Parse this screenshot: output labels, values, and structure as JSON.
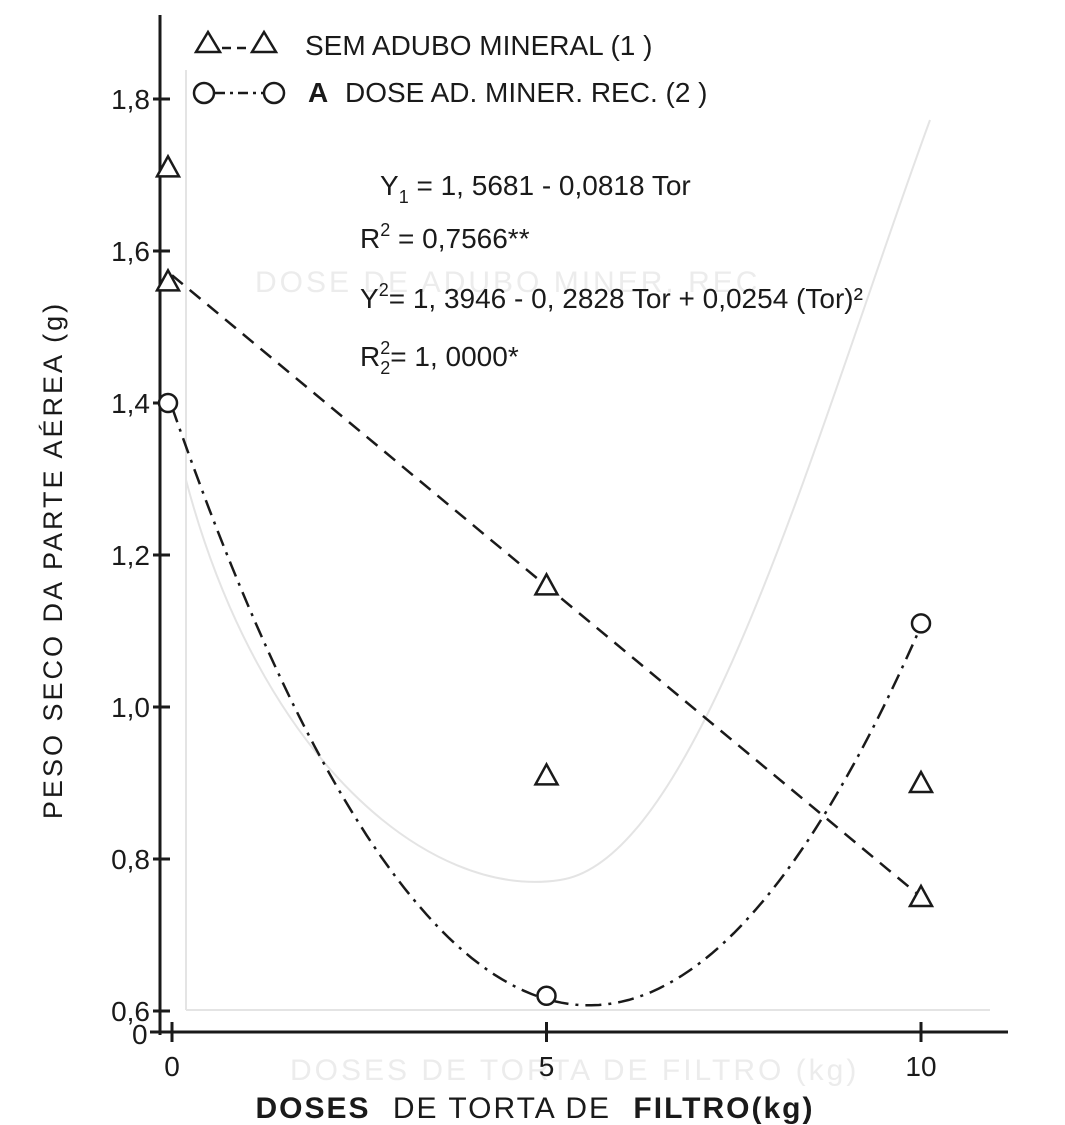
{
  "chart_data": {
    "type": "line",
    "ylabel": "PESO SECO DA PARTE AÉREA (g)",
    "xlabel_bold": "DOSES",
    "xlabel_rest": "DE TORTA DE",
    "xlabel_bold2": "FILTRO(kg)",
    "x_ticks": [
      "0",
      "5",
      "10"
    ],
    "y_ticks": [
      "0,6",
      "0,8",
      "1,0",
      "1,2",
      "1,4",
      "1,6",
      "1,8"
    ],
    "y_origin_label": "0",
    "xlim": [
      0,
      11.2
    ],
    "ylim": [
      0.6,
      1.88
    ],
    "grid": false,
    "legend_position": "top-left",
    "series": [
      {
        "name": "SEM ADUBO MINERAL (1 )",
        "legend_prefix": "",
        "marker": "triangle",
        "line_style": "dashed",
        "points": [
          [
            0,
            1.71
          ],
          [
            0,
            1.56
          ],
          [
            5,
            1.16
          ],
          [
            5,
            0.91
          ],
          [
            10,
            0.9
          ],
          [
            10,
            0.75
          ]
        ],
        "fit": {
          "intercept": 1.5681,
          "slope": -0.0818
        }
      },
      {
        "name": "DOSE AD. MINER. REC. (2 )",
        "legend_prefix": "A",
        "marker": "circle",
        "line_style": "dashdot",
        "points": [
          [
            0,
            1.4
          ],
          [
            5,
            0.62
          ],
          [
            10,
            1.11
          ]
        ],
        "fit": {
          "a": 1.3946,
          "b": -0.2828,
          "c": 0.0254
        }
      }
    ],
    "equations": [
      {
        "base": "Y",
        "sub": "1",
        "sup": "",
        "rest": " = 1, 5681 - 0,0818 Tor"
      },
      {
        "base": "R",
        "sub": "",
        "sup": "2",
        "rest": " = 0,7566**"
      },
      {
        "base": "Y",
        "sub": "",
        "sup": "2",
        "rest": "= 1, 3946 - 0, 2828 Tor + 0,0254 (Tor)²"
      },
      {
        "base": "R",
        "sub": "2",
        "sup": "2",
        "rest": "= 1, 0000*"
      }
    ]
  }
}
